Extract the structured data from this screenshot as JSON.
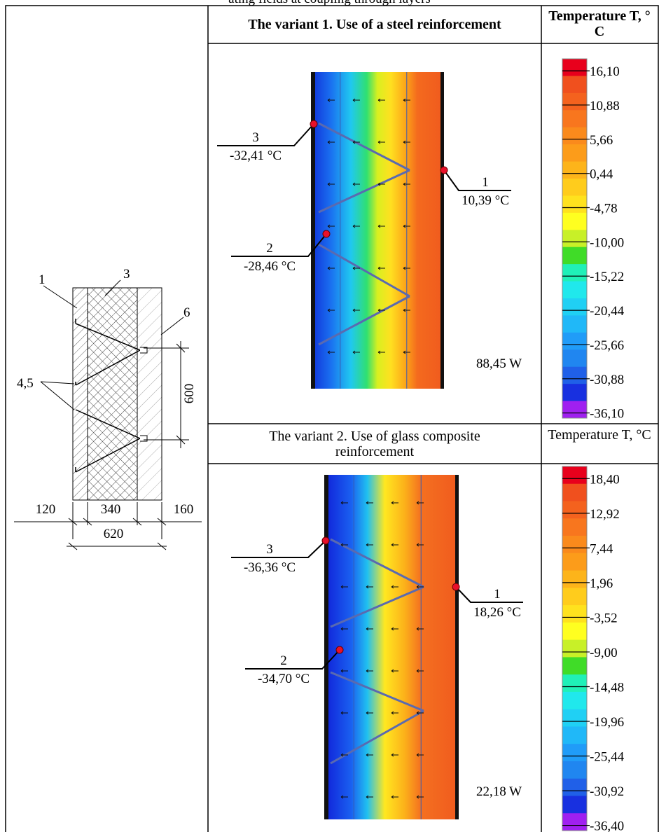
{
  "caption": "ating fields at coupling through layers",
  "drawing": {
    "labels": [
      "1",
      "3",
      "6",
      "4,5"
    ],
    "dimension_height": "600",
    "dimensions": [
      "120",
      "340",
      "160"
    ],
    "dimension_total": "620"
  },
  "variants": [
    {
      "title": "The variant 1. Use of a steel reinforcement",
      "scale_title": "Temperature T, °C",
      "points": [
        {
          "number": "1",
          "temperature": "10,39 °C"
        },
        {
          "number": "2",
          "temperature": "-28,46 °C"
        },
        {
          "number": "3",
          "temperature": "-32,41 °C"
        }
      ],
      "heat_flow": "88,45 W",
      "scale": [
        "16,10",
        "10,88",
        "5,66",
        "0,44",
        "-4,78",
        "-10,00",
        "-15,22",
        "-20,44",
        "-25,66",
        "-30,88",
        "-36,10"
      ]
    },
    {
      "title": "The variant 2. Use of glass composite reinforcement",
      "scale_title": "Temperature T, °C",
      "points": [
        {
          "number": "1",
          "temperature": "18,26 °C"
        },
        {
          "number": "2",
          "temperature": "-34,70 °C"
        },
        {
          "number": "3",
          "temperature": "-36,36 °C"
        }
      ],
      "heat_flow": "22,18 W",
      "scale": [
        "18,40",
        "12,92",
        "7,44",
        "1,96",
        "-3,52",
        "-9,00",
        "-14,48",
        "-19,96",
        "-25,44",
        "-30,92",
        "-36,40"
      ]
    }
  ]
}
